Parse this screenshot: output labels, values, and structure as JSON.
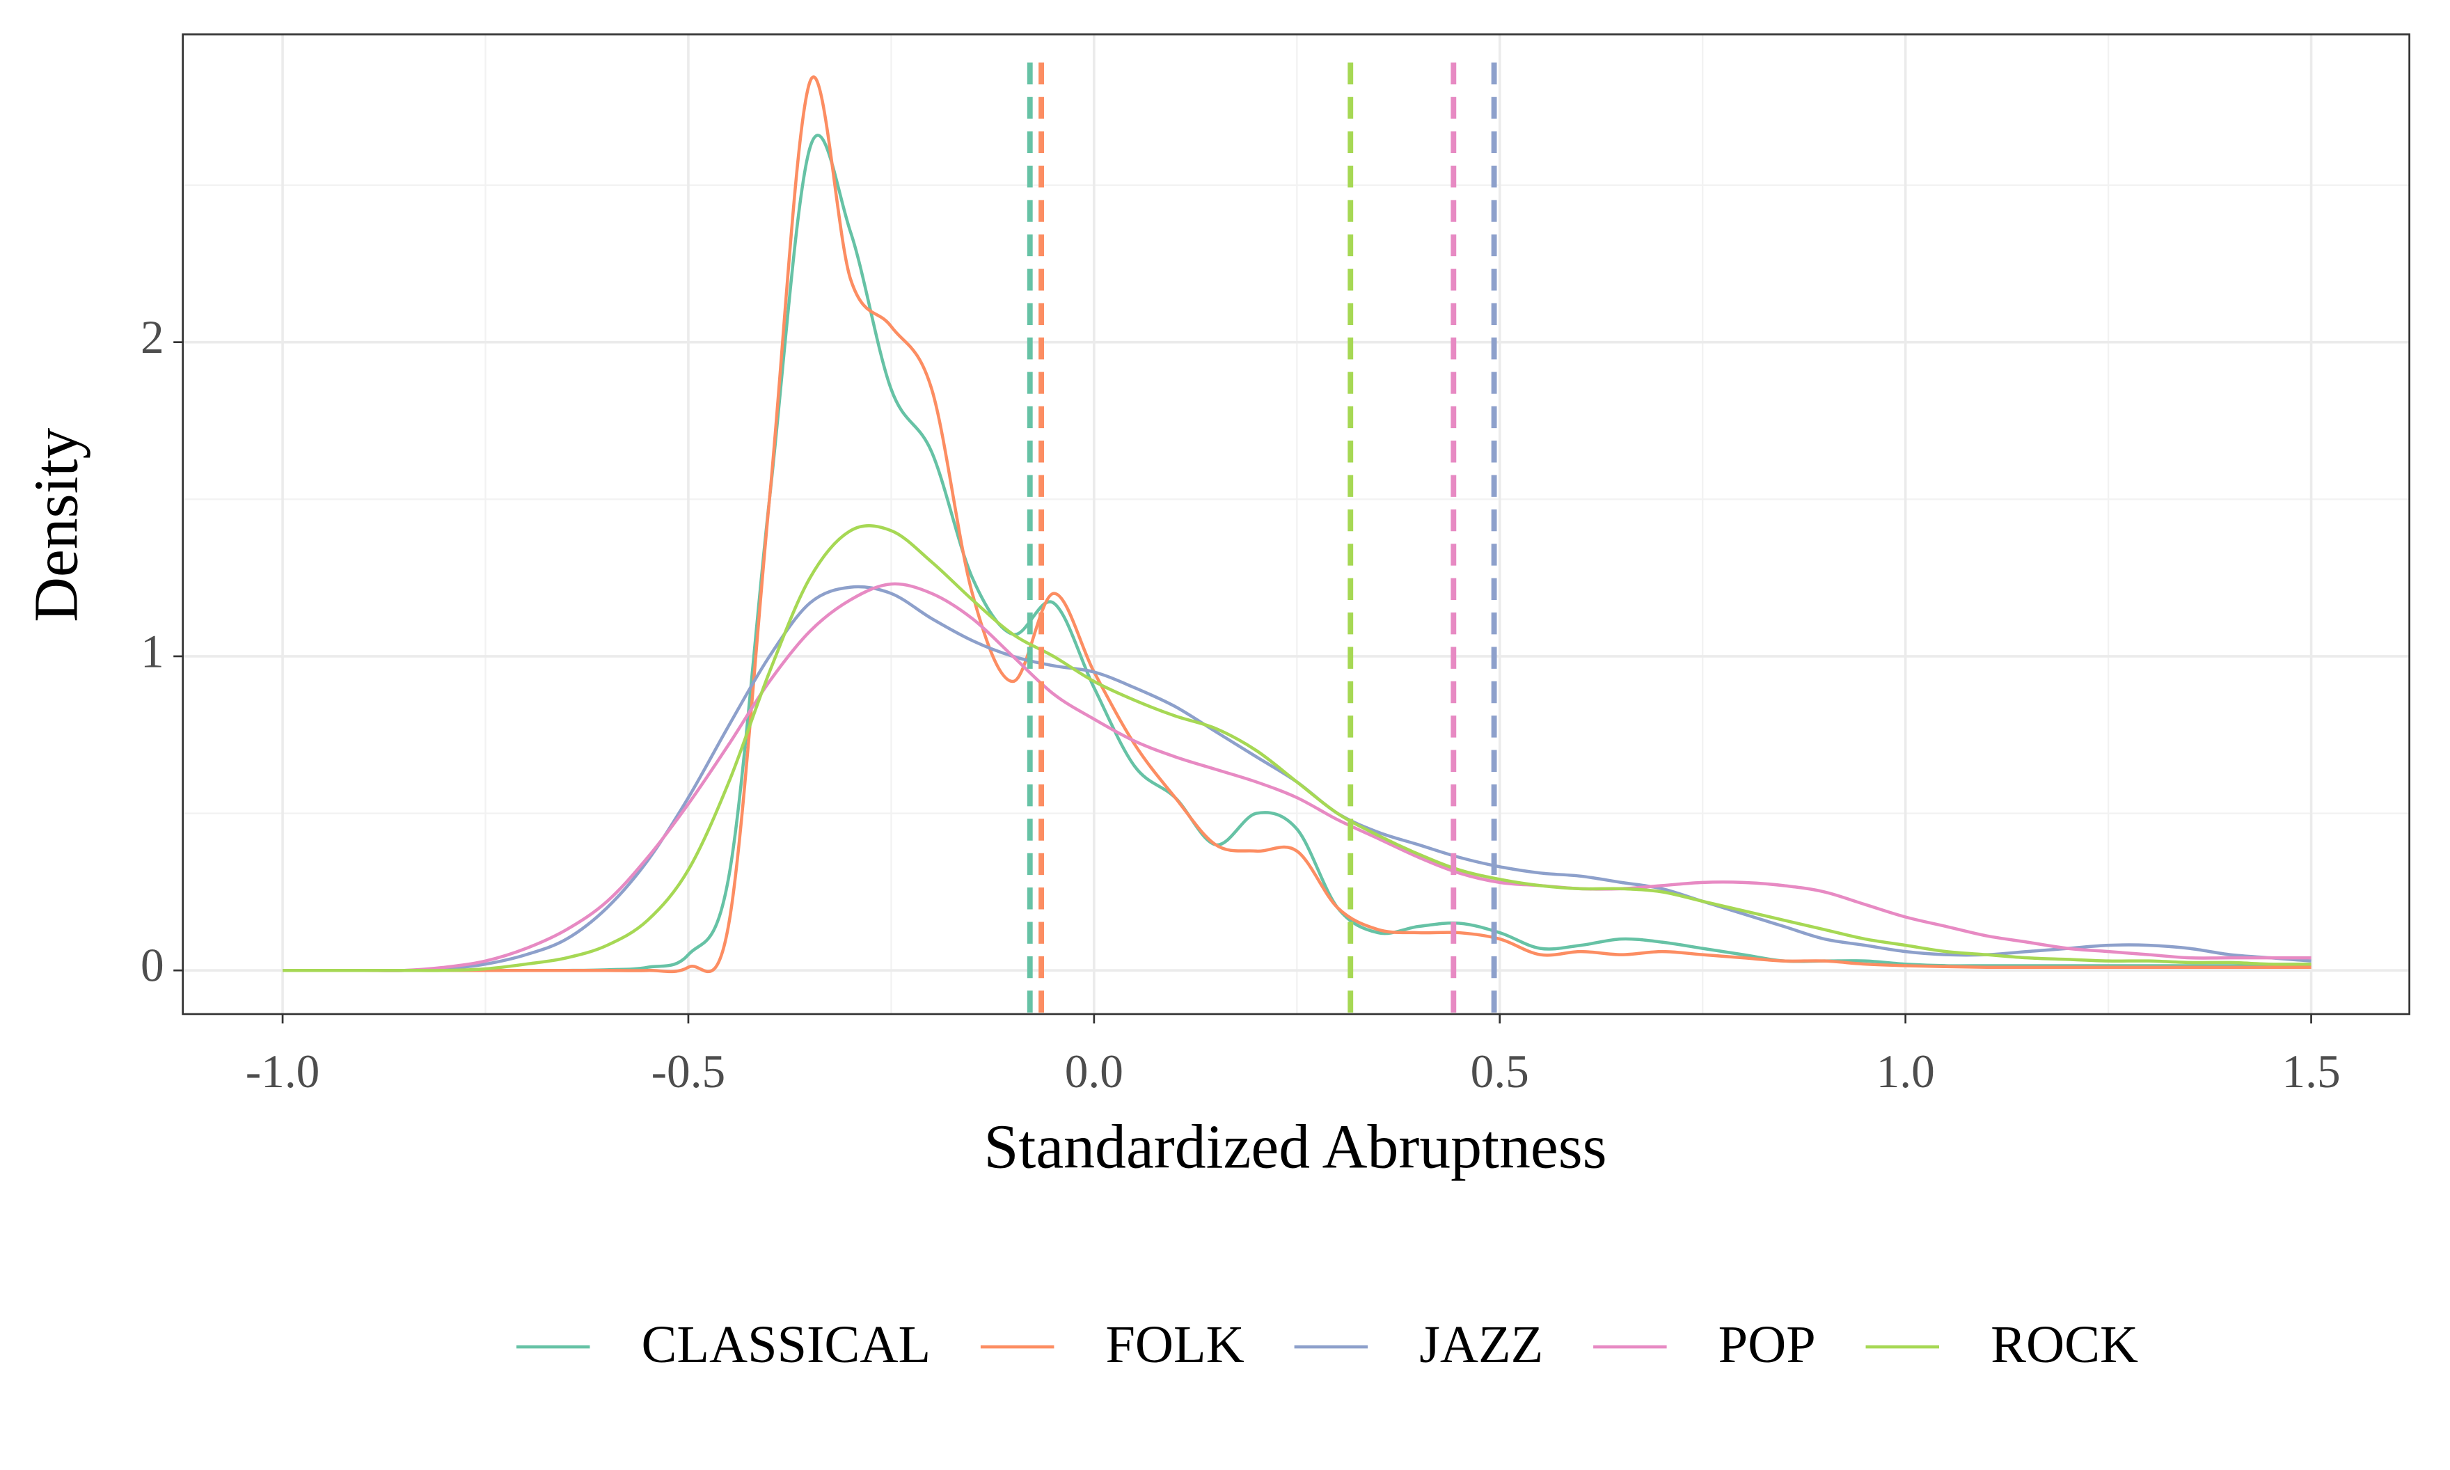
{
  "chart_data": {
    "type": "line",
    "x_label": "Standardized Abruptness",
    "y_label": "Density",
    "x": [
      -1.0,
      -0.95,
      -0.9,
      -0.85,
      -0.8,
      -0.75,
      -0.7,
      -0.65,
      -0.6,
      -0.55,
      -0.5,
      -0.45,
      -0.4,
      -0.35,
      -0.3,
      -0.25,
      -0.2,
      -0.15,
      -0.1,
      -0.05,
      0.0,
      0.05,
      0.1,
      0.15,
      0.2,
      0.25,
      0.3,
      0.35,
      0.4,
      0.45,
      0.5,
      0.55,
      0.6,
      0.65,
      0.7,
      0.75,
      0.8,
      0.85,
      0.9,
      0.95,
      1.0,
      1.05,
      1.1,
      1.15,
      1.2,
      1.25,
      1.3,
      1.35,
      1.4,
      1.45,
      1.5
    ],
    "series": [
      {
        "name": "CLASSICAL",
        "color": "#66c2a5",
        "vline": -0.079,
        "values": [
          0,
          0,
          0,
          0,
          0,
          0,
          0,
          0,
          0.002,
          0.01,
          0.05,
          0.3,
          1.5,
          2.62,
          2.35,
          1.85,
          1.65,
          1.25,
          1.07,
          1.17,
          0.9,
          0.65,
          0.55,
          0.4,
          0.5,
          0.45,
          0.2,
          0.12,
          0.14,
          0.15,
          0.12,
          0.07,
          0.08,
          0.1,
          0.09,
          0.07,
          0.05,
          0.03,
          0.03,
          0.03,
          0.02,
          0.015,
          0.015,
          0.015,
          0.015,
          0.015,
          0.015,
          0.015,
          0.015,
          0.015,
          0.015
        ]
      },
      {
        "name": "FOLK",
        "color": "#fc8d62",
        "vline": -0.065,
        "values": [
          0,
          0,
          0,
          0,
          0,
          0,
          0,
          0,
          0,
          0,
          0.01,
          0.15,
          1.5,
          2.83,
          2.2,
          2.05,
          1.85,
          1.2,
          0.92,
          1.2,
          0.95,
          0.72,
          0.55,
          0.4,
          0.38,
          0.38,
          0.2,
          0.13,
          0.12,
          0.12,
          0.1,
          0.05,
          0.06,
          0.05,
          0.06,
          0.05,
          0.04,
          0.03,
          0.03,
          0.02,
          0.015,
          0.012,
          0.01,
          0.01,
          0.01,
          0.01,
          0.01,
          0.01,
          0.01,
          0.01,
          0.01
        ]
      },
      {
        "name": "JAZZ",
        "color": "#8da0cb",
        "vline": 0.493,
        "values": [
          0,
          0,
          0,
          0,
          0.005,
          0.02,
          0.05,
          0.1,
          0.2,
          0.35,
          0.55,
          0.78,
          1.0,
          1.17,
          1.22,
          1.2,
          1.12,
          1.05,
          1.0,
          0.97,
          0.95,
          0.9,
          0.84,
          0.76,
          0.68,
          0.6,
          0.5,
          0.44,
          0.4,
          0.36,
          0.33,
          0.31,
          0.3,
          0.28,
          0.26,
          0.22,
          0.18,
          0.14,
          0.1,
          0.08,
          0.06,
          0.05,
          0.05,
          0.06,
          0.07,
          0.08,
          0.08,
          0.07,
          0.05,
          0.04,
          0.03
        ]
      },
      {
        "name": "POP",
        "color": "#e78ac3",
        "vline": 0.443,
        "values": [
          0,
          0,
          0,
          0,
          0.01,
          0.03,
          0.07,
          0.13,
          0.22,
          0.36,
          0.53,
          0.72,
          0.92,
          1.08,
          1.18,
          1.23,
          1.2,
          1.12,
          1.0,
          0.88,
          0.8,
          0.73,
          0.68,
          0.64,
          0.6,
          0.55,
          0.48,
          0.42,
          0.36,
          0.31,
          0.28,
          0.27,
          0.26,
          0.26,
          0.27,
          0.28,
          0.28,
          0.27,
          0.25,
          0.21,
          0.17,
          0.14,
          0.11,
          0.09,
          0.07,
          0.06,
          0.05,
          0.04,
          0.04,
          0.04,
          0.04
        ]
      },
      {
        "name": "ROCK",
        "color": "#a6d854",
        "vline": 0.316,
        "values": [
          0,
          0,
          0,
          0,
          0,
          0.005,
          0.02,
          0.04,
          0.08,
          0.16,
          0.32,
          0.6,
          0.95,
          1.25,
          1.4,
          1.4,
          1.3,
          1.18,
          1.07,
          1.0,
          0.92,
          0.86,
          0.81,
          0.77,
          0.7,
          0.6,
          0.5,
          0.43,
          0.37,
          0.32,
          0.29,
          0.27,
          0.26,
          0.26,
          0.25,
          0.22,
          0.19,
          0.16,
          0.13,
          0.1,
          0.08,
          0.06,
          0.05,
          0.04,
          0.035,
          0.03,
          0.03,
          0.025,
          0.025,
          0.02,
          0.02
        ]
      }
    ],
    "xlim": [
      -1.123,
      1.621
    ],
    "ylim": [
      -0.139,
      2.98
    ],
    "xticks": [
      {
        "value": -1.0,
        "label": "-1.0"
      },
      {
        "value": -0.5,
        "label": "-0.5"
      },
      {
        "value": 0,
        "label": "0.0"
      },
      {
        "value": 0.5,
        "label": "0.5"
      },
      {
        "value": 1.0,
        "label": "1.0"
      },
      {
        "value": 1.5,
        "label": "1.5"
      }
    ],
    "yticks": [
      0,
      1,
      2
    ],
    "grid": true,
    "minor_grid": true,
    "legend": "bottom"
  }
}
